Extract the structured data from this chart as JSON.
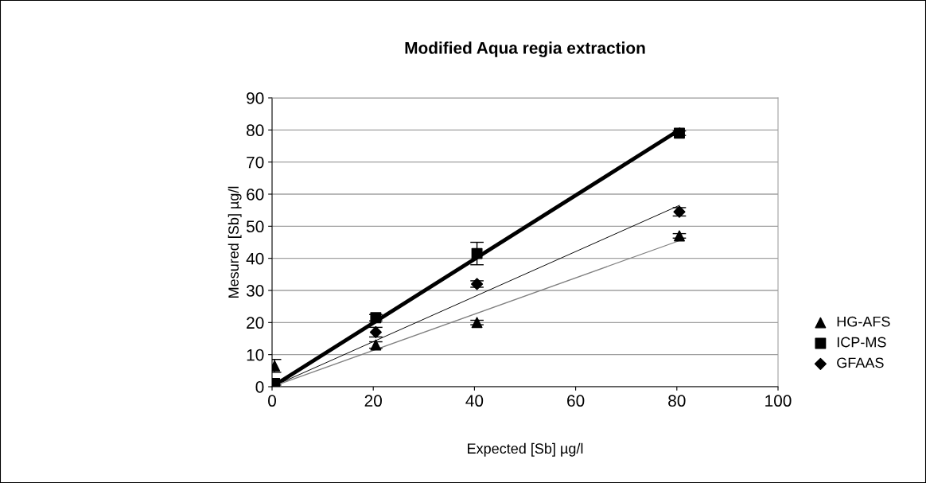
{
  "chart_data": {
    "type": "scatter",
    "title": "Modified Aqua regia extraction",
    "xlabel": "Expected [Sb] µg/l",
    "ylabel": "Mesured [Sb] µg/l",
    "x": [
      0.5,
      20.5,
      40.5,
      80.5
    ],
    "series": [
      {
        "name": "HG-AFS",
        "color": "#000000",
        "marker": "triangle",
        "values": [
          6.5,
          13,
          20,
          47
        ],
        "errors": [
          2,
          1,
          0.7,
          0.7
        ]
      },
      {
        "name": "ICP-MS",
        "color": "#000000",
        "marker": "square",
        "values": [
          1,
          21.5,
          41.5,
          79
        ],
        "errors": [
          0.5,
          1,
          3.5,
          0.7
        ]
      },
      {
        "name": "GFAAS",
        "color": "#000000",
        "marker": "diamond",
        "values": [
          null,
          17,
          32,
          54.5
        ],
        "errors": [
          null,
          1.5,
          1,
          1.3
        ]
      },
      {
        "type": "line",
        "color": "#000000",
        "x": [
          0.5,
          80.5
        ],
        "values": [
          0.5,
          80
        ]
      },
      {
        "type": "line",
        "color": "#000000",
        "x": [
          0,
          80.5
        ],
        "values": [
          0,
          56.5
        ]
      },
      {
        "type": "line",
        "color": "#808080",
        "x": [
          0,
          80.5
        ],
        "values": [
          0,
          45.5
        ]
      }
    ],
    "xlim": [
      0,
      100
    ],
    "xticks": [
      0,
      20,
      40,
      60,
      80,
      100
    ],
    "ylim": [
      0,
      90
    ],
    "yticks": [
      0,
      10,
      20,
      30,
      40,
      50,
      60,
      70,
      80,
      90
    ],
    "grid": "y",
    "legend": "right"
  }
}
